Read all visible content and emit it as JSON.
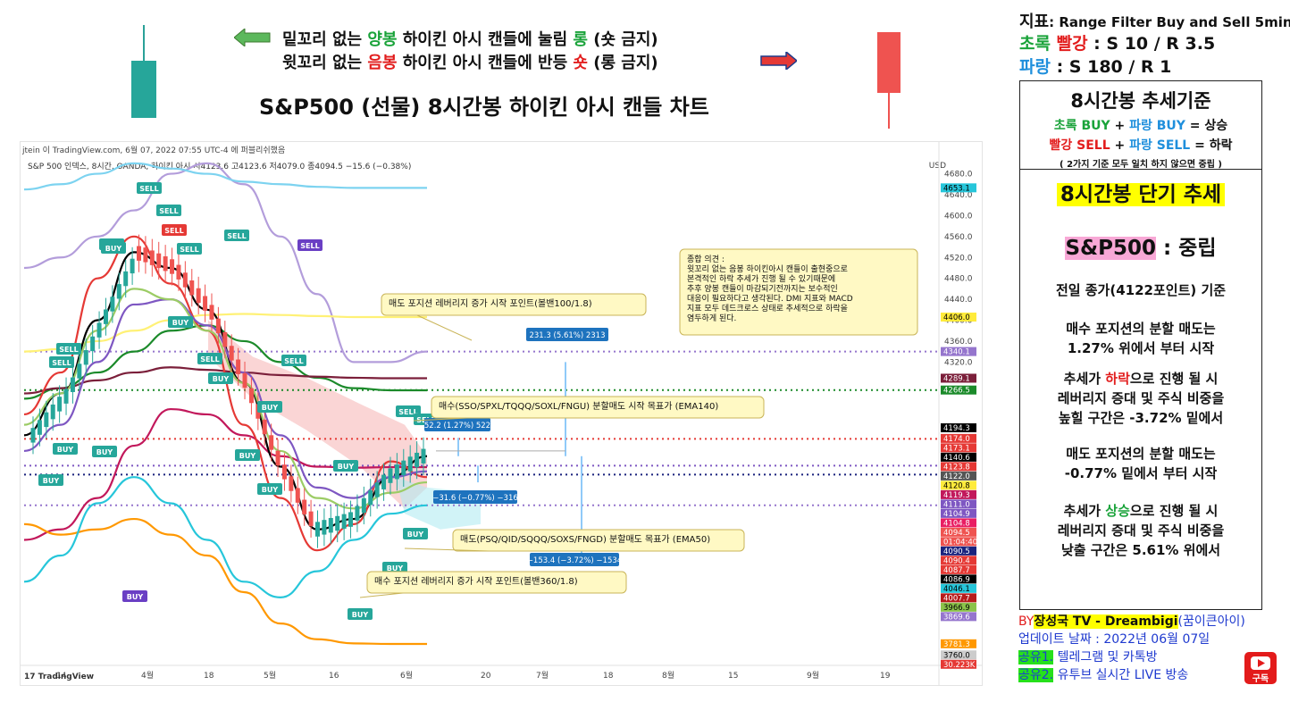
{
  "top": {
    "line1": {
      "p1": "밑꼬리 없는 ",
      "p2": "양봉",
      "p3": " 하이킨 아시 캔들에 눌림 ",
      "p4": "롱",
      "p5": " (숏 금지)"
    },
    "line2": {
      "p1": "윗꼬리 없는 ",
      "p2": "음봉",
      "p3": " 하이킨 아시 캔들에 반등 ",
      "p4": "숏",
      "p5": " (롱 금지)"
    },
    "title": "S&P500 (선물) 8시간봉 하이킨 아시 캔들 차트"
  },
  "chart_header": {
    "line": "jtein 이 TradingView.com, 6월 07, 2022 07:55 UTC-4 에 퍼블리쉬했음",
    "symbol": "S&P 500 인덱스, 8시간, OANDA, 하이킨 아시  시4123.6  고4123.6  저4079.0  종4094.5  −15.6 (−0.38%)",
    "currency": "USD",
    "tv_logo": "TradingView"
  },
  "chart_data": {
    "type": "line",
    "description": "",
    "ylim": [
      3740,
      4710
    ],
    "x_ticks": [
      "14",
      "4월",
      "18",
      "5월",
      "16",
      "6월",
      "20",
      "7월",
      "18",
      "8월",
      "15",
      "9월",
      "19"
    ],
    "y_ticks": [
      4680.0,
      4640.0,
      4600.0,
      4560.0,
      4520.0,
      4480.0,
      4440.0,
      4400.0,
      4360.0,
      4320.0
    ],
    "price_tags": [
      {
        "label": "4653.1",
        "value": 4653.1,
        "color": "#26c6da"
      },
      {
        "label": "4406.0",
        "value": 4406.0,
        "color": "#ffeb3b"
      },
      {
        "label": "4340.1",
        "value": 4340.1,
        "color": "#9575cd"
      },
      {
        "label": "4289.1",
        "value": 4289.1,
        "color": "#7b1f3a"
      },
      {
        "label": "4266.5",
        "value": 4266.5,
        "color": "#1b8a2a"
      },
      {
        "label": "4194.3",
        "value": 4194.3,
        "color": "#000000"
      },
      {
        "label": "4174.0",
        "value": 4174.0,
        "color": "#e53935"
      },
      {
        "label": "4173.1",
        "value": 4173.1,
        "color": "#e53935"
      },
      {
        "label": "4140.6",
        "value": 4140.6,
        "color": "#000000"
      },
      {
        "label": "4123.8",
        "value": 4123.8,
        "color": "#e53935"
      },
      {
        "label": "4122.0",
        "value": 4122.0,
        "color": "#555555"
      },
      {
        "label": "4120.8",
        "value": 4120.8,
        "color": "#ffeb3b"
      },
      {
        "label": "4119.3",
        "value": 4119.3,
        "color": "#c2185b"
      },
      {
        "label": "4111.0",
        "value": 4111.0,
        "color": "#7e57c2"
      },
      {
        "label": "4104.9",
        "value": 4104.9,
        "color": "#7e57c2"
      },
      {
        "label": "4104.8",
        "value": 4104.8,
        "color": "#e91e63"
      },
      {
        "label": "4094.5",
        "value": 4094.5,
        "color": "#ef5350"
      },
      {
        "label": "01:04:40",
        "value": 4085.0,
        "color": "#ef5350"
      },
      {
        "label": "4090.5",
        "value": 4090.5,
        "color": "#1a237e"
      },
      {
        "label": "4090.4",
        "value": 4090.4,
        "color": "#e53935"
      },
      {
        "label": "4087.7",
        "value": 4087.7,
        "color": "#e53935"
      },
      {
        "label": "4086.9",
        "value": 4086.9,
        "color": "#000000"
      },
      {
        "label": "4046.1",
        "value": 4046.1,
        "color": "#26c6da"
      },
      {
        "label": "4007.7",
        "value": 4007.7,
        "color": "#b71c1c"
      },
      {
        "label": "3966.9",
        "value": 3966.9,
        "color": "#8bc34a"
      },
      {
        "label": "3869.6",
        "value": 3869.6,
        "color": "#9575cd"
      },
      {
        "label": "3781.3",
        "value": 3781.3,
        "color": "#ff9800"
      },
      {
        "label": "3760.0",
        "value": 3760.0,
        "color": "#cccccc"
      },
      {
        "label": "30.223K",
        "value": 3745.0,
        "color": "#e53935"
      }
    ],
    "series": [
      {
        "color": "#b39ddb",
        "values": [
          4500,
          4520,
          4560,
          4610,
          4680,
          4700,
          4660,
          4560,
          4450,
          4320,
          4320,
          4340
        ]
      },
      {
        "color": "#7dd3f0",
        "values": [
          4650,
          4660,
          4680,
          4700,
          4690,
          4680,
          4665,
          4660,
          4655,
          4653,
          4653,
          4653
        ]
      },
      {
        "color": "#fff176",
        "values": [
          4340,
          4345,
          4360,
          4380,
          4400,
          4410,
          4412,
          4410,
          4408,
          4406,
          4406,
          4406
        ]
      },
      {
        "color": "#1b8a2a",
        "values": [
          4250,
          4270,
          4300,
          4340,
          4380,
          4390,
          4360,
          4320,
          4290,
          4270,
          4266,
          4266
        ]
      },
      {
        "color": "#7b1f3a",
        "values": [
          4260,
          4270,
          4285,
          4300,
          4310,
          4305,
          4300,
          4295,
          4292,
          4290,
          4289,
          4289
        ]
      },
      {
        "color": "#c2185b",
        "values": [
          3980,
          4000,
          4060,
          4160,
          4230,
          4220,
          4180,
          4140,
          4120,
          4118,
          4119,
          4119
        ]
      },
      {
        "color": "#000000",
        "values": [
          4180,
          4260,
          4400,
          4530,
          4500,
          4420,
          4280,
          4120,
          4000,
          4020,
          4100,
          4140
        ]
      },
      {
        "color": "#e53935",
        "values": [
          4220,
          4300,
          4480,
          4560,
          4470,
          4380,
          4200,
          4060,
          3960,
          4010,
          4130,
          4100
        ]
      },
      {
        "color": "#7e57c2",
        "values": [
          4150,
          4200,
          4320,
          4430,
          4440,
          4390,
          4300,
          4180,
          4080,
          4060,
          4100,
          4111
        ]
      },
      {
        "color": "#9ccc65",
        "values": [
          4200,
          4260,
          4380,
          4460,
          4440,
          4380,
          4280,
          4150,
          4060,
          4040,
          4070,
          4090
        ]
      },
      {
        "color": "#ff9800",
        "values": [
          4010,
          3990,
          4000,
          4020,
          3990,
          3950,
          3880,
          3820,
          3790,
          3782,
          3781,
          3781
        ]
      },
      {
        "color": "#26c6da",
        "values": [
          3900,
          3950,
          4050,
          4100,
          4050,
          3980,
          3900,
          3870,
          3920,
          3980,
          4030,
          4046
        ]
      }
    ],
    "horizontal_levels": [
      {
        "value": 4340.1,
        "style": "dotted",
        "color": "#9575cd"
      },
      {
        "value": 4266.5,
        "style": "dotted",
        "color": "#1b8a2a"
      },
      {
        "value": 4173.1,
        "style": "dotted",
        "color": "#e53935"
      },
      {
        "value": 4122.0,
        "style": "dotted",
        "color": "#7e57c2"
      },
      {
        "value": 4104.8,
        "style": "dotted",
        "color": "#1a237e"
      },
      {
        "value": 4046.1,
        "style": "dotted",
        "color": "#9575cd"
      }
    ],
    "signals": [
      {
        "label": "SELL",
        "color": "#26a69a"
      },
      {
        "label": "SELL",
        "color": "#26a69a"
      },
      {
        "label": "SELL",
        "color": "#e53935"
      },
      {
        "label": "SELL",
        "color": "#26a69a"
      },
      {
        "label": "SELL",
        "color": "#26a69a"
      },
      {
        "label": "SELL",
        "color": "#26a69a"
      },
      {
        "label": "SELL",
        "color": "#6a3fc4"
      },
      {
        "label": "SELL",
        "color": "#26a69a"
      },
      {
        "label": "SELL",
        "color": "#26a69a"
      },
      {
        "label": "SELL",
        "color": "#26a69a"
      },
      {
        "label": "SELL",
        "color": "#26a69a"
      },
      {
        "label": "SELL",
        "color": "#26a69a"
      },
      {
        "label": "SELL",
        "color": "#26a69a"
      },
      {
        "label": "BUY",
        "color": "#26a69a"
      },
      {
        "label": "BUY",
        "color": "#26a69a"
      },
      {
        "label": "BUY",
        "color": "#26a69a"
      },
      {
        "label": "BUY",
        "color": "#26a69a"
      },
      {
        "label": "BUY",
        "color": "#26a69a"
      },
      {
        "label": "BUY",
        "color": "#26a69a"
      },
      {
        "label": "BUY",
        "color": "#26a69a"
      },
      {
        "label": "BUY",
        "color": "#26a69a"
      },
      {
        "label": "BUY",
        "color": "#26a69a"
      },
      {
        "label": "BUY",
        "color": "#26a69a"
      },
      {
        "label": "BUY",
        "color": "#6a3fc4"
      },
      {
        "label": "BUY",
        "color": "#26a69a"
      },
      {
        "label": "BUY",
        "color": "#26a69a"
      },
      {
        "label": "BUY",
        "color": "#26a69a"
      }
    ],
    "annotations": [
      {
        "key": "comment",
        "lines": [
          "종합 의견 :",
          "윗꼬리 없는 음봉 하이킨아시 캔들이 출현중으로",
          "본격적인 하락 추세가 진행 될 수 있기때문에",
          "추후 양봉 캔들이 마감되기전까지는 보수적인",
          "대응이 필요하다고 생각된다. DMI 지표와 MACD",
          "지표 모두 데드크로스 상태로 추세적으로 하락을",
          "염두하게 된다."
        ]
      },
      {
        "key": "sell_lev",
        "text": "매도 포지션 레버리지 증가 시작 포인트(볼밴100/1.8)"
      },
      {
        "key": "buy_target",
        "text": "매수(SSO/SPXL/TQQQ/SOXL/FNGU) 분할매도 시작 목표가 (EMA140)"
      },
      {
        "key": "sell_target",
        "text": "매도(PSQ/QID/SQQQ/SOXS/FNGD) 분할매도 목표가 (EMA50)"
      },
      {
        "key": "buy_lev",
        "text": "매수 포지션 레버리지 증가 시작 포인트(볼밴360/1.8)"
      },
      {
        "key": "m1",
        "text": "231.3 (5.61%) 2313"
      },
      {
        "key": "m2",
        "text": "52.2 (1.27%) 522"
      },
      {
        "key": "m3",
        "text": "−31.6 (−0.77%) −316"
      },
      {
        "key": "m4",
        "text": "−153.4 (−3.72%) −1534"
      }
    ]
  },
  "right": {
    "indicator_prefix": "지표",
    "indicator_name": ": Range Filter Buy and Sell 5min",
    "line2": {
      "green": "초록",
      "red": "빨강",
      "rest": " : S 10 / R 3.5"
    },
    "line3": {
      "blue": "파랑",
      "rest": "  : S 180 / R 1"
    },
    "trend_box": {
      "title": "8시간봉 추세기준",
      "r1": {
        "a": "초록 BUY",
        "b": " + ",
        "c": "파랑 BUY",
        "d": "  = 상승"
      },
      "r2": {
        "a": "빨강 SELL",
        "b": " + ",
        "c": "파랑 SELL",
        "d": " = 하락"
      },
      "note": "( 2가지 기준 모두 일치 하지 않으면 중립 )"
    },
    "short_box": {
      "title": "8시간봉 단기 추세",
      "sp_label": "S&P500",
      "sp_state": " : 중립",
      "basis": "전일 종가(4122포인트) 기준",
      "p1a": "매수 포지션의 분할 매도는",
      "p1b": "1.27% 위에서 부터 시작",
      "p2a_pre": "추세가 ",
      "p2a_hl": "하락",
      "p2a_post": "으로 진행 될 시",
      "p2b": "레버리지 증대 및 주식 비중을",
      "p2c": "높힐 구간은 -3.72% 밑에서",
      "p3a": "매도 포지션의 분할 매도는",
      "p3b": "-0.77% 밑에서 부터 시작",
      "p4a_pre": "추세가 ",
      "p4a_hl": "상승",
      "p4a_post": "으로 진행 될 시",
      "p4b": "레버리지 증대 및 주식 비중을",
      "p4c": "낮출 구간은 5.61% 위에서"
    },
    "credits": {
      "by": "BY",
      "name": "장성국 TV - Dreambigi",
      "alias": "(꿈이큰아이)",
      "update": "업데이트 날짜 : 2022년 06월 07일",
      "share1_tag": "공유1.",
      "share1": " 텔레그램 및 카톡방",
      "share2_tag": "공유2.",
      "share2": " 유투브 실시간 LIVE 방송",
      "subscribe": "구독"
    }
  },
  "colors": {
    "green": "#1aa33a",
    "red": "#e21d1d",
    "blue": "#1f8fdc",
    "yellow": "#ffff00",
    "pink": "#f8a8d6"
  }
}
